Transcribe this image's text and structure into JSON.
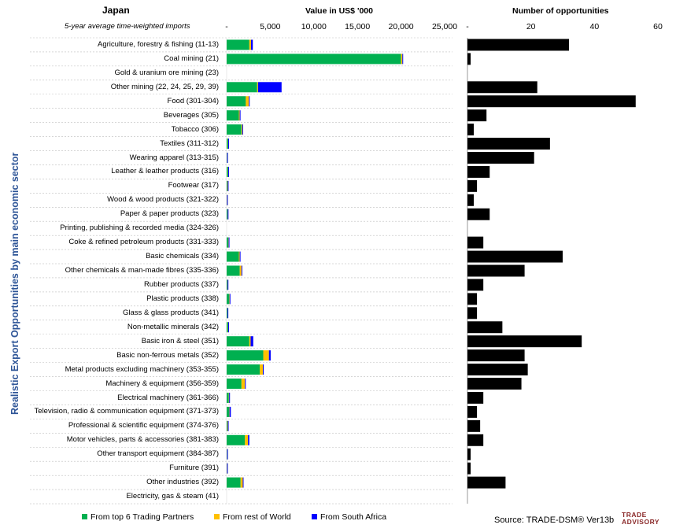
{
  "header": {
    "country": "Japan",
    "subtitle": "5-year average time-weighted imports",
    "value_title": "Value in US$ '000",
    "count_title": "Number of opportunities",
    "y_axis_label": "Realistic Export Opportunities by main economic sector"
  },
  "legend": {
    "items": [
      {
        "label": "From top 6 Trading Partners",
        "color": "#00b050"
      },
      {
        "label": "From rest of World",
        "color": "#ffc000"
      },
      {
        "label": "From South Africa",
        "color": "#0000ff"
      }
    ]
  },
  "footer": {
    "source": "Source: TRADE-DSM® Ver13b",
    "logo_line1": "TRADE",
    "logo_line2": "ADVISORY"
  },
  "colors": {
    "top6": "#00b050",
    "row": "#ffc000",
    "sa": "#0000ff",
    "count_bar": "#000000",
    "grid": "#bfbfbf",
    "title_blue": "#2e5597"
  },
  "chart_data": [
    {
      "type": "bar",
      "orientation": "horizontal",
      "stacked": true,
      "title": "Value in US$ '000",
      "xlim": [
        0,
        25000
      ],
      "ticks": [
        "-",
        "5,000",
        "10,000",
        "15,000",
        "20,000",
        "25,000"
      ],
      "tick_values": [
        0,
        5000,
        10000,
        15000,
        20000,
        25000
      ],
      "categories": [
        "Agriculture, forestry & fishing (11-13)",
        "Coal mining (21)",
        "Gold & uranium ore mining (23)",
        "Other mining (22, 24, 25, 29, 39)",
        "Food (301-304)",
        "Beverages (305)",
        "Tobacco (306)",
        "Textiles (311-312)",
        "Wearing apparel (313-315)",
        "Leather & leather products (316)",
        "Footwear (317)",
        "Wood & wood products (321-322)",
        "Paper & paper products (323)",
        "Printing, publishing & recorded media (324-326)",
        "Coke & refined petroleum products (331-333)",
        "Basic chemicals (334)",
        "Other chemicals & man-made fibres (335-336)",
        "Rubber products (337)",
        "Plastic products (338)",
        "Glass & glass products (341)",
        "Non-metallic minerals (342)",
        "Basic iron & steel (351)",
        "Basic non-ferrous metals (352)",
        "Metal products excluding machinery (353-355)",
        "Machinery & equipment (356-359)",
        "Electrical machinery (361-366)",
        "Television, radio & communication equipment (371-373)",
        "Professional & scientific equipment (374-376)",
        "Motor vehicles, parts & accessories (381-383)",
        "Other transport equipment (384-387)",
        "Furniture (391)",
        "Other industries (392)",
        "Electricity, gas & steam (41)"
      ],
      "series": [
        {
          "name": "From top 6 Trading Partners",
          "values": [
            2600,
            20000,
            0,
            3500,
            2200,
            1400,
            1700,
            150,
            30,
            150,
            80,
            20,
            100,
            0,
            200,
            1400,
            1500,
            80,
            300,
            80,
            150,
            2600,
            4200,
            3800,
            1700,
            250,
            300,
            80,
            2100,
            30,
            20,
            1600,
            0
          ]
        },
        {
          "name": "From rest of World",
          "values": [
            200,
            150,
            0,
            100,
            350,
            100,
            100,
            30,
            20,
            30,
            50,
            20,
            20,
            0,
            30,
            100,
            200,
            30,
            40,
            20,
            30,
            150,
            650,
            350,
            400,
            40,
            30,
            60,
            350,
            20,
            20,
            250,
            0
          ]
        },
        {
          "name": "From South Africa",
          "values": [
            200,
            30,
            0,
            2700,
            50,
            20,
            40,
            50,
            80,
            50,
            10,
            10,
            60,
            0,
            80,
            50,
            40,
            10,
            60,
            10,
            60,
            300,
            200,
            100,
            80,
            50,
            150,
            20,
            150,
            10,
            10,
            50,
            0
          ]
        }
      ]
    },
    {
      "type": "bar",
      "orientation": "horizontal",
      "title": "Number of opportunities",
      "xlim": [
        0,
        60
      ],
      "ticks": [
        "-",
        "20",
        "40",
        "60"
      ],
      "tick_values": [
        0,
        20,
        40,
        60
      ],
      "categories_shared": true,
      "series": [
        {
          "name": "Number of opportunities",
          "values": [
            32,
            1,
            0,
            22,
            53,
            6,
            2,
            26,
            21,
            7,
            3,
            2,
            7,
            0,
            5,
            30,
            18,
            5,
            3,
            3,
            11,
            36,
            18,
            19,
            17,
            5,
            3,
            4,
            5,
            1,
            1,
            12,
            0
          ]
        }
      ]
    }
  ]
}
